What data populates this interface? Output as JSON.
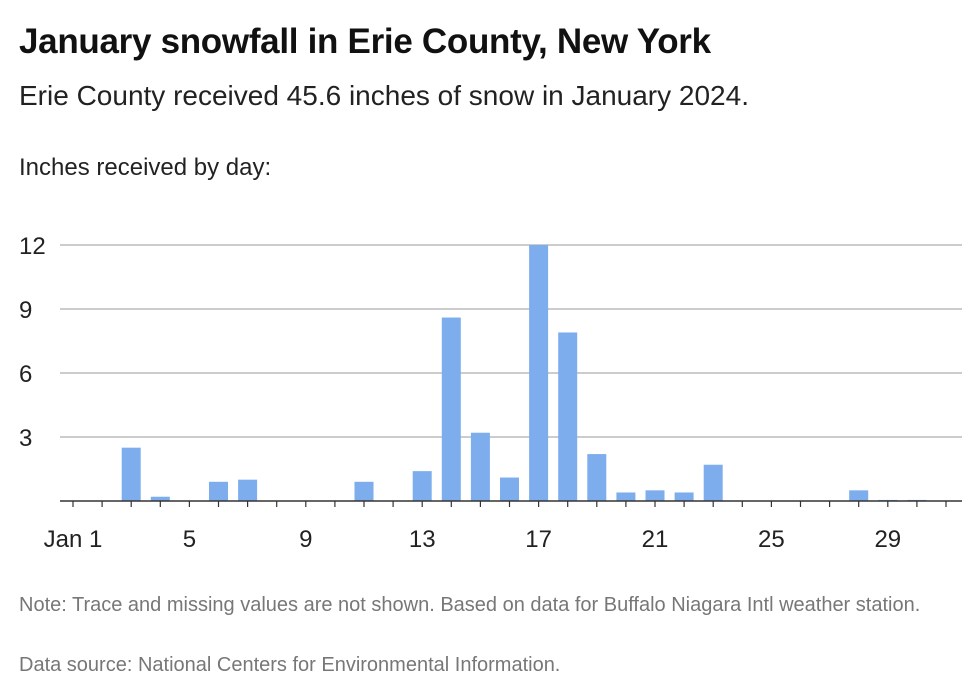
{
  "header": {
    "title": "January snowfall in Erie County, New York",
    "subtitle": "Erie County received 45.6 inches of snow in January 2024."
  },
  "footer": {
    "note": "Note: Trace and missing values are not shown. Based on data for Buffalo Niagara Intl weather station.",
    "source": "Data source: National Centers for Environmental Information."
  },
  "colors": {
    "bar": "#7eadee",
    "grid": "#bbbbbb",
    "axis": "#333333"
  },
  "chart_data": {
    "type": "bar",
    "title": "January snowfall in Erie County, New York",
    "subtitle": "Erie County received 45.6 inches of snow in January 2024.",
    "ylabel": "Inches received by day:",
    "xlabel": "",
    "ylim": [
      0,
      12
    ],
    "yticks": [
      3,
      6,
      9,
      12
    ],
    "xlim": [
      1,
      31
    ],
    "xticks": [
      {
        "day": 1,
        "label": "Jan 1"
      },
      {
        "day": 5,
        "label": "5"
      },
      {
        "day": 9,
        "label": "9"
      },
      {
        "day": 13,
        "label": "13"
      },
      {
        "day": 17,
        "label": "17"
      },
      {
        "day": 21,
        "label": "21"
      },
      {
        "day": 25,
        "label": "25"
      },
      {
        "day": 29,
        "label": "29"
      }
    ],
    "grid": true,
    "series": [
      {
        "days": [
          3,
          4,
          6,
          7,
          11,
          13,
          14,
          15,
          16,
          17,
          18,
          19,
          20,
          21,
          22,
          23,
          28,
          29,
          30
        ],
        "values": [
          2.5,
          0.2,
          0.9,
          1.0,
          0.9,
          1.4,
          8.6,
          3.2,
          1.1,
          12.0,
          7.9,
          2.2,
          0.4,
          0.5,
          0.4,
          1.7,
          0.5,
          0.05,
          0.05
        ]
      }
    ]
  }
}
